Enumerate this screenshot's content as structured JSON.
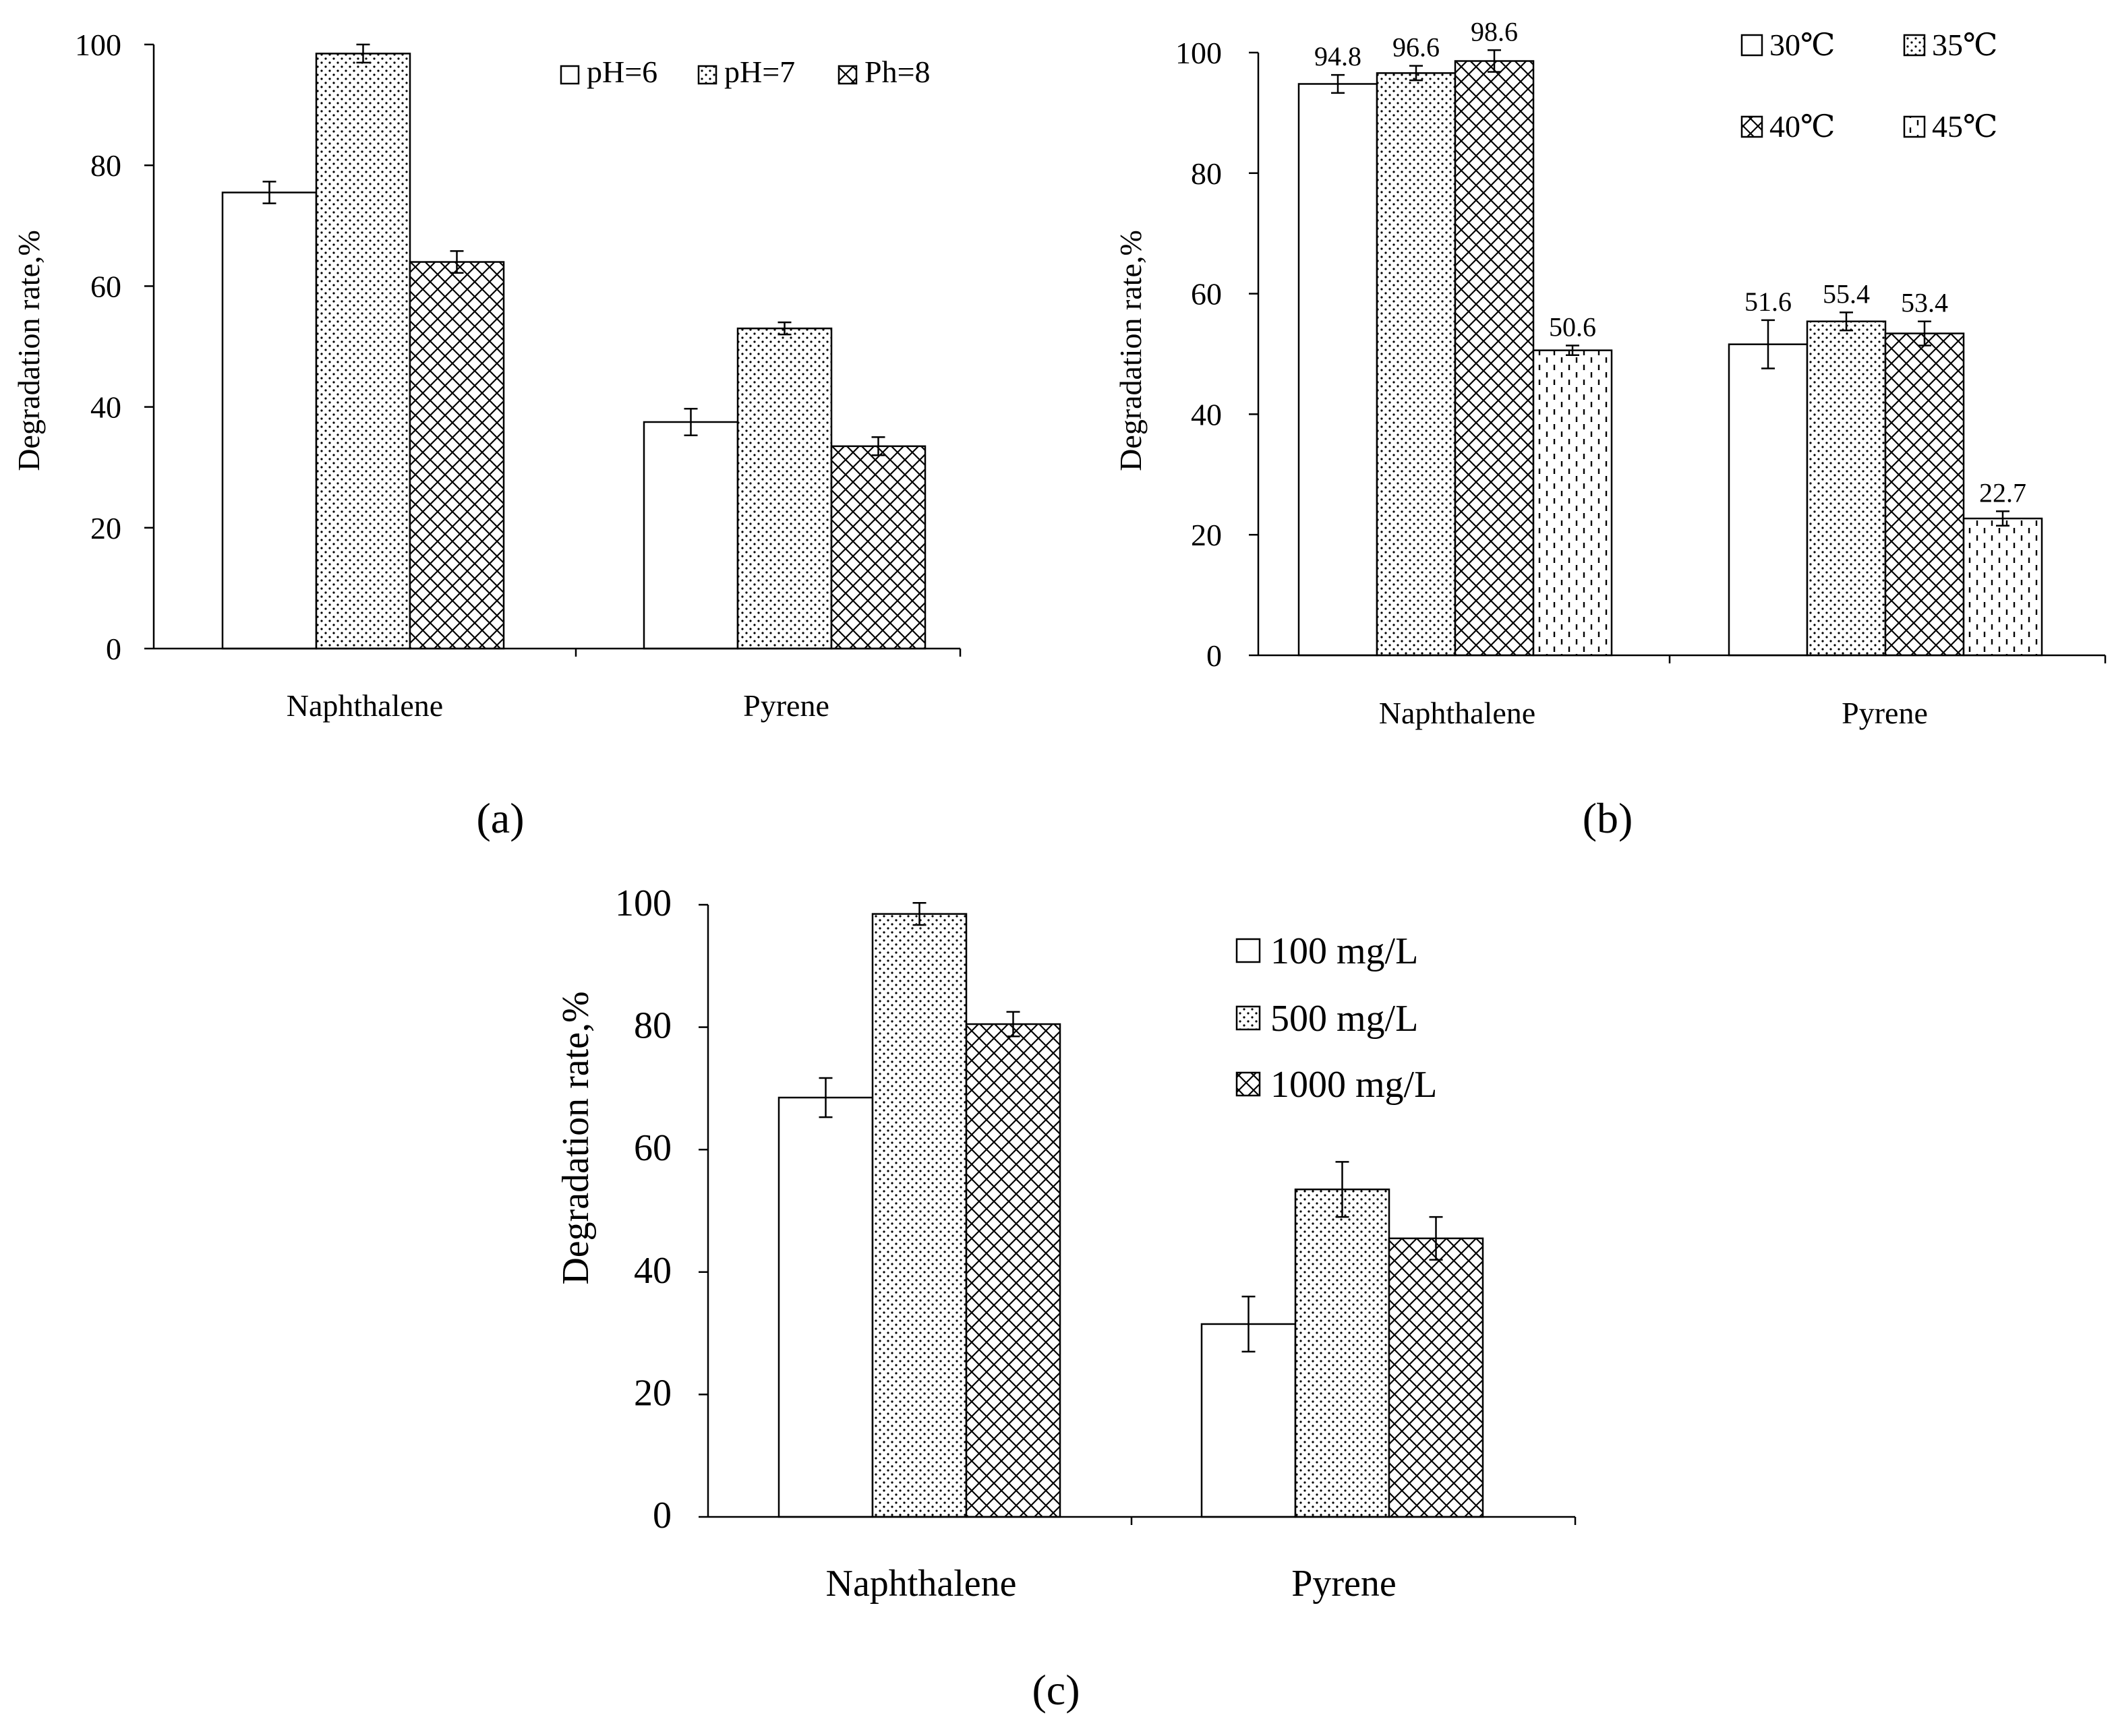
{
  "chart_data": [
    {
      "type": "bar",
      "panel_label": "(a)",
      "ylabel": "Degradation rate,%",
      "xlabel": "",
      "ylim": [
        0,
        100
      ],
      "yticks": [
        0,
        20,
        40,
        60,
        80,
        100
      ],
      "categories": [
        "Naphthalene",
        "Pyrene"
      ],
      "legend_position": "top-right",
      "series": [
        {
          "name": "pH=6",
          "pattern": "white",
          "values": [
            75.5,
            37.5
          ],
          "errors": [
            1.8,
            2.2
          ]
        },
        {
          "name": "pH=7",
          "pattern": "dots",
          "values": [
            98.5,
            53.0
          ],
          "errors": [
            1.5,
            1.0
          ]
        },
        {
          "name": "Ph=8",
          "pattern": "crosshatch",
          "values": [
            64.0,
            33.5
          ],
          "errors": [
            1.8,
            1.5
          ]
        }
      ]
    },
    {
      "type": "bar",
      "panel_label": "(b)",
      "ylabel": "Degradation rate,%",
      "xlabel": "",
      "ylim": [
        0,
        100
      ],
      "yticks": [
        0,
        20,
        40,
        60,
        80,
        100
      ],
      "categories": [
        "Naphthalene",
        "Pyrene"
      ],
      "legend_position": "top-right",
      "series": [
        {
          "name": "30℃",
          "pattern": "white",
          "values": [
            94.8,
            51.6
          ],
          "errors": [
            1.5,
            4.0
          ],
          "labels": [
            "94.8",
            "51.6"
          ]
        },
        {
          "name": "35℃",
          "pattern": "dots",
          "values": [
            96.6,
            55.4
          ],
          "errors": [
            1.2,
            1.5
          ],
          "labels": [
            "96.6",
            "55.4"
          ]
        },
        {
          "name": "40℃",
          "pattern": "crosshatch",
          "values": [
            98.6,
            53.4
          ],
          "errors": [
            1.8,
            2.0
          ],
          "labels": [
            "98.6",
            "53.4"
          ]
        },
        {
          "name": "45℃",
          "pattern": "dashes",
          "values": [
            50.6,
            22.7
          ],
          "errors": [
            0.8,
            1.2
          ],
          "labels": [
            "50.6",
            "22.7"
          ]
        }
      ]
    },
    {
      "type": "bar",
      "panel_label": "(c)",
      "ylabel": "Degradation rate,%",
      "xlabel": "",
      "ylim": [
        0,
        100
      ],
      "yticks": [
        0,
        20,
        40,
        60,
        80,
        100
      ],
      "categories": [
        "Naphthalene",
        "Pyrene"
      ],
      "legend_position": "top-right",
      "series": [
        {
          "name": "100 mg/L",
          "pattern": "white",
          "values": [
            68.5,
            31.5
          ],
          "errors": [
            3.2,
            4.5
          ]
        },
        {
          "name": "500 mg/L",
          "pattern": "dots",
          "values": [
            98.5,
            53.5
          ],
          "errors": [
            1.8,
            4.5
          ]
        },
        {
          "name": "1000 mg/L",
          "pattern": "crosshatch",
          "values": [
            80.5,
            45.5
          ],
          "errors": [
            2.0,
            3.5
          ]
        }
      ]
    }
  ]
}
